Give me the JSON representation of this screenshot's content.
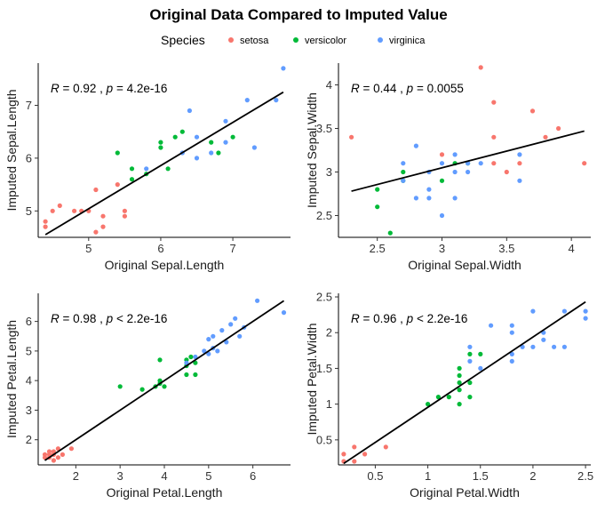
{
  "title": "Original Data Compared to Imputed Value",
  "legend": {
    "title": "Species",
    "items": [
      {
        "label": "setosa",
        "color": "#F8766D"
      },
      {
        "label": "versicolor",
        "color": "#00BA38"
      },
      {
        "label": "virginica",
        "color": "#619CFF"
      }
    ]
  },
  "chart_data": [
    {
      "type": "scatter",
      "xlabel": "Original Sepal.Length",
      "ylabel": "Imputed Sepal.Length",
      "xlim": [
        4.3,
        7.8
      ],
      "ylim": [
        4.5,
        7.8
      ],
      "xticks": [
        5,
        6,
        7
      ],
      "yticks": [
        5,
        6,
        7
      ],
      "annotation": {
        "R": "0.92",
        "p_op": "=",
        "p": "4.2e-16"
      },
      "fit": [
        [
          4.4,
          4.55
        ],
        [
          7.7,
          7.25
        ]
      ],
      "series": [
        {
          "name": "setosa",
          "points": [
            [
              4.4,
              4.7
            ],
            [
              4.4,
              4.8
            ],
            [
              4.5,
              5.0
            ],
            [
              4.6,
              5.1
            ],
            [
              4.8,
              5.0
            ],
            [
              4.9,
              5.0
            ],
            [
              5.0,
              5.0
            ],
            [
              5.1,
              4.6
            ],
            [
              5.1,
              5.4
            ],
            [
              5.2,
              4.9
            ],
            [
              5.2,
              4.7
            ],
            [
              5.4,
              5.5
            ],
            [
              5.5,
              5.0
            ],
            [
              5.5,
              4.9
            ]
          ]
        },
        {
          "name": "versicolor",
          "points": [
            [
              5.4,
              6.1
            ],
            [
              5.6,
              5.8
            ],
            [
              5.6,
              5.6
            ],
            [
              5.8,
              5.7
            ],
            [
              6.0,
              6.2
            ],
            [
              6.0,
              6.3
            ],
            [
              6.1,
              5.8
            ],
            [
              6.2,
              6.4
            ],
            [
              6.3,
              6.5
            ],
            [
              6.7,
              6.3
            ],
            [
              6.8,
              6.1
            ],
            [
              7.0,
              6.4
            ]
          ]
        },
        {
          "name": "virginica",
          "points": [
            [
              5.8,
              5.8
            ],
            [
              6.3,
              6.1
            ],
            [
              6.4,
              6.9
            ],
            [
              6.5,
              6.4
            ],
            [
              6.5,
              6.0
            ],
            [
              6.7,
              6.1
            ],
            [
              6.9,
              6.3
            ],
            [
              6.9,
              6.7
            ],
            [
              7.2,
              7.1
            ],
            [
              7.3,
              6.2
            ],
            [
              7.6,
              7.1
            ],
            [
              7.7,
              7.7
            ]
          ]
        }
      ]
    },
    {
      "type": "scatter",
      "xlabel": "Original Sepal.Width",
      "ylabel": "Imputed Sepal.Width",
      "xlim": [
        2.2,
        4.15
      ],
      "ylim": [
        2.25,
        4.25
      ],
      "xticks": [
        2.5,
        3.0,
        3.5,
        4.0
      ],
      "yticks": [
        2.5,
        3.0,
        3.5,
        4.0
      ],
      "annotation": {
        "R": "0.44",
        "p_op": "=",
        "p": "0.0055"
      },
      "fit": [
        [
          2.3,
          2.78
        ],
        [
          4.1,
          3.47
        ]
      ],
      "series": [
        {
          "name": "setosa",
          "points": [
            [
              2.3,
              3.4
            ],
            [
              3.0,
              3.2
            ],
            [
              3.3,
              4.2
            ],
            [
              3.4,
              3.8
            ],
            [
              3.4,
              3.4
            ],
            [
              3.4,
              3.1
            ],
            [
              3.5,
              3.0
            ],
            [
              3.6,
              3.1
            ],
            [
              3.7,
              3.7
            ],
            [
              3.8,
              3.4
            ],
            [
              3.9,
              3.5
            ],
            [
              4.1,
              3.1
            ]
          ]
        },
        {
          "name": "versicolor",
          "points": [
            [
              2.5,
              2.8
            ],
            [
              2.5,
              2.6
            ],
            [
              2.6,
              2.3
            ],
            [
              2.7,
              3.0
            ],
            [
              2.7,
              2.9
            ],
            [
              3.0,
              2.9
            ],
            [
              3.1,
              3.1
            ],
            [
              3.2,
              3.1
            ]
          ]
        },
        {
          "name": "virginica",
          "points": [
            [
              2.7,
              3.1
            ],
            [
              2.7,
              2.9
            ],
            [
              2.8,
              3.3
            ],
            [
              2.8,
              2.7
            ],
            [
              2.9,
              2.8
            ],
            [
              2.9,
              2.7
            ],
            [
              2.9,
              3.0
            ],
            [
              3.0,
              3.1
            ],
            [
              3.0,
              2.5
            ],
            [
              3.1,
              3.0
            ],
            [
              3.1,
              3.2
            ],
            [
              3.1,
              2.7
            ],
            [
              3.2,
              3.0
            ],
            [
              3.3,
              3.1
            ],
            [
              3.6,
              2.9
            ],
            [
              3.6,
              3.2
            ],
            [
              3.2,
              3.1
            ]
          ]
        }
      ]
    },
    {
      "type": "scatter",
      "xlabel": "Original Petal.Length",
      "ylabel": "Imputed Petal.Length",
      "xlim": [
        1.15,
        6.85
      ],
      "ylim": [
        1.15,
        6.95
      ],
      "xticks": [
        2,
        3,
        4,
        5,
        6
      ],
      "yticks": [
        2,
        3,
        4,
        5,
        6
      ],
      "annotation": {
        "R": "0.98",
        "p_op": "<",
        "p": "2.2e-16"
      },
      "fit": [
        [
          1.3,
          1.3
        ],
        [
          6.7,
          6.7
        ]
      ],
      "series": [
        {
          "name": "setosa",
          "points": [
            [
              1.3,
              1.4
            ],
            [
              1.3,
              1.5
            ],
            [
              1.4,
              1.4
            ],
            [
              1.4,
              1.6
            ],
            [
              1.5,
              1.5
            ],
            [
              1.5,
              1.3
            ],
            [
              1.6,
              1.7
            ],
            [
              1.6,
              1.4
            ],
            [
              1.7,
              1.5
            ],
            [
              1.9,
              1.7
            ],
            [
              1.4,
              1.5
            ],
            [
              1.5,
              1.6
            ]
          ]
        },
        {
          "name": "versicolor",
          "points": [
            [
              3.0,
              3.8
            ],
            [
              3.5,
              3.7
            ],
            [
              3.8,
              3.8
            ],
            [
              3.9,
              4.7
            ],
            [
              3.9,
              4.0
            ],
            [
              3.9,
              3.9
            ],
            [
              4.0,
              3.8
            ],
            [
              4.5,
              4.2
            ],
            [
              4.5,
              4.5
            ],
            [
              4.6,
              4.8
            ],
            [
              4.7,
              4.6
            ],
            [
              4.7,
              4.2
            ],
            [
              4.5,
              4.7
            ]
          ]
        },
        {
          "name": "virginica",
          "points": [
            [
              4.5,
              4.6
            ],
            [
              4.7,
              4.8
            ],
            [
              4.9,
              5.0
            ],
            [
              5.0,
              4.9
            ],
            [
              5.0,
              5.4
            ],
            [
              5.1,
              5.1
            ],
            [
              5.1,
              5.5
            ],
            [
              5.2,
              5.0
            ],
            [
              5.3,
              5.7
            ],
            [
              5.4,
              5.3
            ],
            [
              5.5,
              5.9
            ],
            [
              5.6,
              6.1
            ],
            [
              5.7,
              5.5
            ],
            [
              5.8,
              5.8
            ],
            [
              6.1,
              6.7
            ],
            [
              6.7,
              6.3
            ]
          ]
        }
      ]
    },
    {
      "type": "scatter",
      "xlabel": "Original Petal.Width",
      "ylabel": "Imputed Petal.Width",
      "xlim": [
        0.15,
        2.55
      ],
      "ylim": [
        0.15,
        2.55
      ],
      "xticks": [
        0.5,
        1.0,
        1.5,
        2.0,
        2.5
      ],
      "yticks": [
        0.5,
        1.0,
        1.5,
        2.0,
        2.5
      ],
      "annotation": {
        "R": "0.96",
        "p_op": "<",
        "p": "2.2e-16"
      },
      "fit": [
        [
          0.2,
          0.17
        ],
        [
          2.5,
          2.43
        ]
      ],
      "series": [
        {
          "name": "setosa",
          "points": [
            [
              0.2,
              0.3
            ],
            [
              0.2,
              0.2
            ],
            [
              0.3,
              0.2
            ],
            [
              0.3,
              0.4
            ],
            [
              0.4,
              0.3
            ],
            [
              0.6,
              0.4
            ]
          ]
        },
        {
          "name": "versicolor",
          "points": [
            [
              1.0,
              1.0
            ],
            [
              1.1,
              1.1
            ],
            [
              1.3,
              1.5
            ],
            [
              1.3,
              1.4
            ],
            [
              1.3,
              1.3
            ],
            [
              1.3,
              1.2
            ],
            [
              1.3,
              1.0
            ],
            [
              1.4,
              1.3
            ],
            [
              1.4,
              1.1
            ],
            [
              1.4,
              1.7
            ],
            [
              1.5,
              1.7
            ],
            [
              1.2,
              1.1
            ]
          ]
        },
        {
          "name": "virginica",
          "points": [
            [
              1.4,
              1.8
            ],
            [
              1.4,
              1.6
            ],
            [
              1.5,
              1.5
            ],
            [
              1.6,
              2.1
            ],
            [
              1.8,
              2.1
            ],
            [
              1.8,
              2.0
            ],
            [
              1.8,
              1.7
            ],
            [
              1.8,
              1.6
            ],
            [
              1.9,
              1.8
            ],
            [
              2.0,
              1.8
            ],
            [
              2.0,
              2.3
            ],
            [
              2.1,
              1.9
            ],
            [
              2.1,
              2.0
            ],
            [
              2.2,
              1.8
            ],
            [
              2.3,
              1.8
            ],
            [
              2.3,
              2.3
            ],
            [
              2.5,
              2.3
            ],
            [
              2.5,
              2.2
            ]
          ]
        }
      ]
    }
  ]
}
